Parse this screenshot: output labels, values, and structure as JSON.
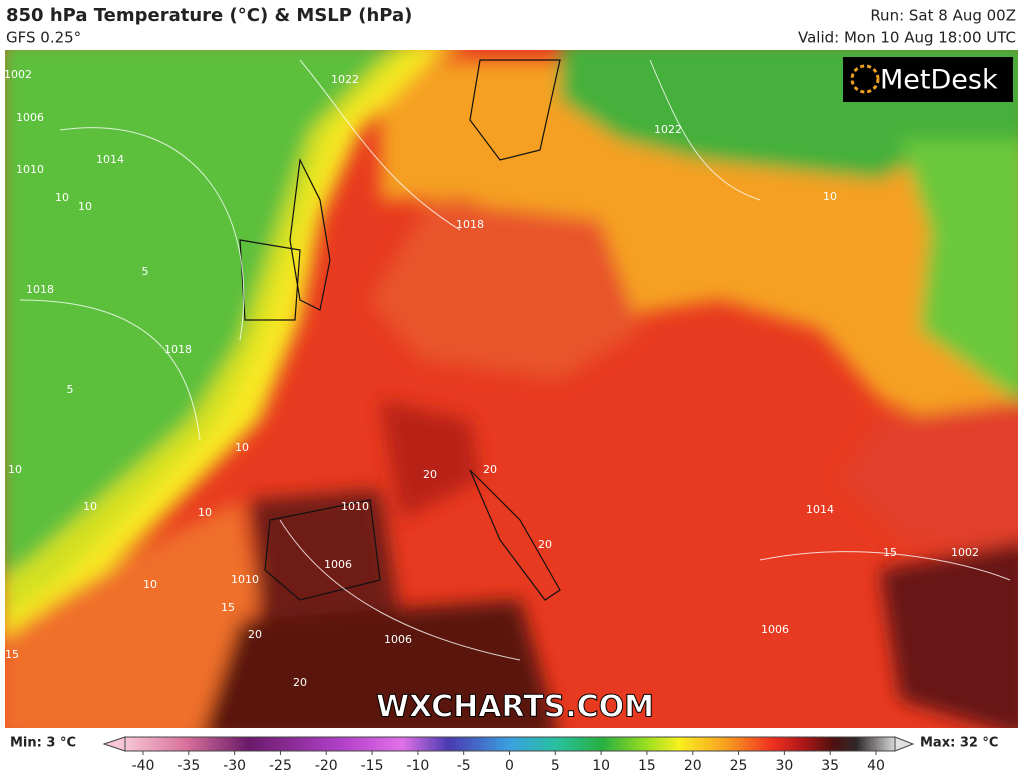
{
  "header": {
    "title": "850 hPa Temperature (°C) & MSLP (hPa)",
    "subtitle": "GFS 0.25°",
    "run": "Run: Sat 8 Aug 00Z",
    "valid": "Valid: Mon 10 Aug 18:00 UTC"
  },
  "logo": "MetDesk",
  "watermark": "WXCHARTS.COM",
  "contour_labels": [
    "1002",
    "1006",
    "1010",
    "1014",
    "1018",
    "1018",
    "1022",
    "1022",
    "1018",
    "10",
    "10",
    "5",
    "5",
    "10",
    "10",
    "10",
    "10",
    "10",
    "15",
    "20",
    "15",
    "1006",
    "1006",
    "1010",
    "20",
    "20",
    "20",
    "10",
    "15",
    "1002",
    "1014",
    "1006",
    "1010",
    "20"
  ],
  "footer": {
    "min": "Min: 3 °C",
    "max": "Max: 32 °C"
  },
  "colorbar": {
    "ticks": [
      -40,
      -35,
      -30,
      -25,
      -20,
      -15,
      -10,
      -5,
      0,
      5,
      10,
      15,
      20,
      25,
      30,
      35,
      40
    ]
  }
}
